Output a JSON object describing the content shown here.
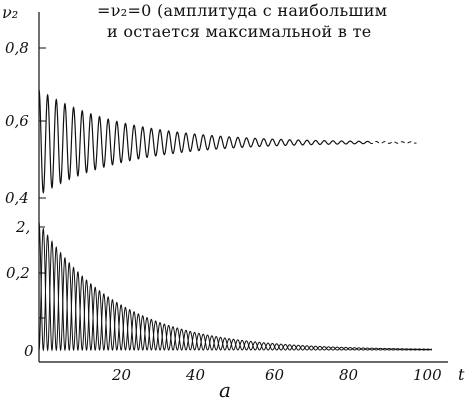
{
  "header": {
    "line1": "=ν₂=0 (амплитуда с наибольшим",
    "line2": "и остается максимальной в те"
  },
  "figure_caption": "a",
  "chart_data": [
    {
      "type": "line",
      "panel": "upper",
      "ylabel": "ν₂",
      "xlabel": "t",
      "x_range": [
        0,
        100
      ],
      "y_ticks": [
        "0,8",
        "0,6",
        "0,4"
      ],
      "y_tick_values": [
        0.8,
        0.6,
        0.4
      ],
      "series": [
        {
          "period": 2.2,
          "center": 0.548,
          "amplitude_start": 0.14,
          "decay_rate": 0.046,
          "curve_end_t": 96
        }
      ]
    },
    {
      "type": "line",
      "panel": "lower",
      "xlabel": "t",
      "x_ticks": [
        "20",
        "40",
        "60",
        "80",
        "100"
      ],
      "x_tick_values": [
        20,
        40,
        60,
        80,
        100
      ],
      "x_range": [
        0,
        100
      ],
      "y_ticks": [
        "2,",
        "0,2",
        "0"
      ],
      "series": [
        {
          "period": 2.2,
          "phase": 0,
          "peak_start": 0.34,
          "decay_rate": 0.05
        },
        {
          "period": 2.2,
          "phase": 1.1,
          "peak_start": 0.34,
          "decay_rate": 0.05
        }
      ]
    }
  ]
}
